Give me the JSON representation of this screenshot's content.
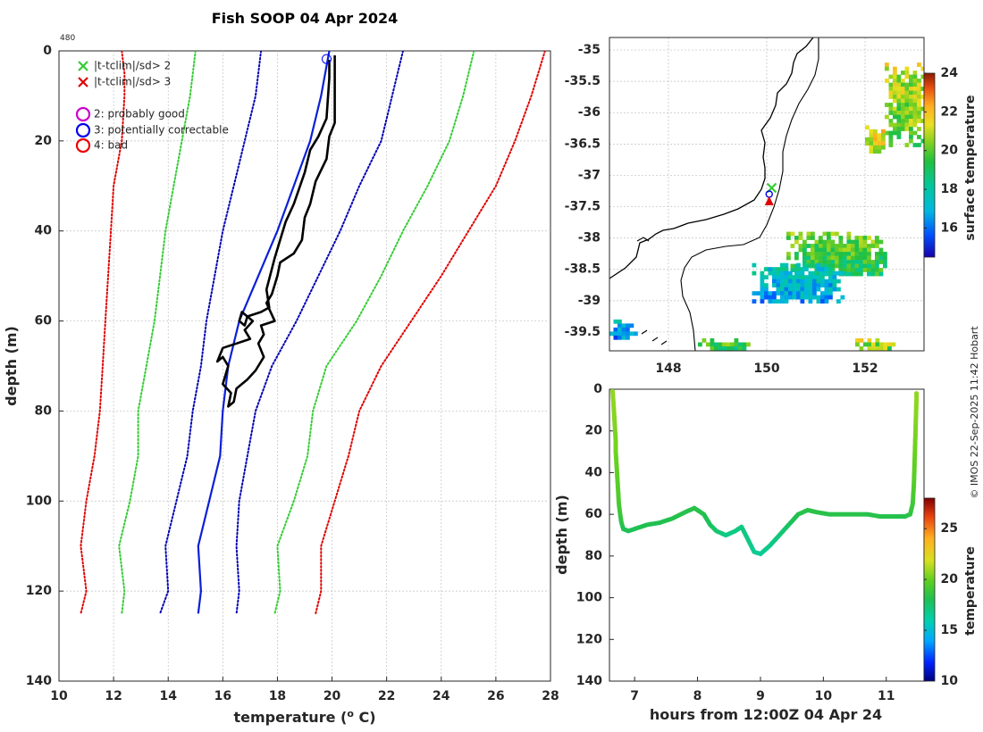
{
  "credit": "© IMOS 22-Sep-2025 11:42 Hobart",
  "colors": {
    "limit2": "#33cc33",
    "limit3": "#e00000",
    "sd1": "#0000b4",
    "climatology": "#0b1fd6",
    "profile": "#000000",
    "axis": "#262626",
    "grid": "#c0c0c0"
  },
  "chart_data": [
    {
      "type": "line",
      "id": "profile",
      "title": "Fish SOOP 04 Apr 2024",
      "annotation": "480",
      "xlabel": "temperature (",
      "xlabel_sup": "o",
      "xlabel_tail": " C)",
      "ylabel": "depth (m)",
      "xlim": [
        10,
        28
      ],
      "ylim": [
        0,
        140
      ],
      "y_reversed": true,
      "xticks": [
        10,
        12,
        14,
        16,
        18,
        20,
        22,
        24,
        26,
        28
      ],
      "yticks": [
        0,
        20,
        40,
        60,
        80,
        100,
        120,
        140
      ],
      "grid": true,
      "legend": {
        "position": "top-left",
        "entries": [
          {
            "marker": "x",
            "color": "#33cc33",
            "label": "|t-tclim|/sd> 2"
          },
          {
            "marker": "x",
            "color": "#e00000",
            "label": "|t-tclim|/sd> 3"
          },
          {
            "marker": "o",
            "color": "#cc00cc",
            "label": "2: probably good"
          },
          {
            "marker": "o",
            "color": "#0000ee",
            "label": "3: potentially correctable"
          },
          {
            "marker": "o",
            "color": "#ee0000",
            "label": "4: bad"
          }
        ]
      },
      "series": [
        {
          "name": "climatology-3sd-low",
          "style": "dotted",
          "color": "#e00000",
          "points": [
            [
              12.3,
              0
            ],
            [
              12.4,
              5
            ],
            [
              12.4,
              10
            ],
            [
              12.3,
              20
            ],
            [
              12.0,
              30
            ],
            [
              11.9,
              40
            ],
            [
              11.8,
              50
            ],
            [
              11.7,
              60
            ],
            [
              11.6,
              70
            ],
            [
              11.5,
              80
            ],
            [
              11.3,
              90
            ],
            [
              11.0,
              100
            ],
            [
              10.8,
              110
            ],
            [
              11.0,
              120
            ],
            [
              10.8,
              125
            ]
          ]
        },
        {
          "name": "climatology-2sd-low",
          "style": "dotted",
          "color": "#33cc33",
          "points": [
            [
              15.0,
              0
            ],
            [
              14.8,
              10
            ],
            [
              14.5,
              20
            ],
            [
              14.2,
              30
            ],
            [
              13.9,
              40
            ],
            [
              13.7,
              50
            ],
            [
              13.5,
              60
            ],
            [
              13.2,
              70
            ],
            [
              12.9,
              80
            ],
            [
              12.9,
              90
            ],
            [
              12.6,
              100
            ],
            [
              12.2,
              110
            ],
            [
              12.4,
              120
            ],
            [
              12.3,
              125
            ]
          ]
        },
        {
          "name": "climatology-1sd-low",
          "style": "dotted",
          "color": "#0000b4",
          "points": [
            [
              17.4,
              0
            ],
            [
              17.2,
              10
            ],
            [
              16.8,
              20
            ],
            [
              16.4,
              30
            ],
            [
              16.0,
              40
            ],
            [
              15.7,
              50
            ],
            [
              15.4,
              60
            ],
            [
              15.2,
              70
            ],
            [
              14.9,
              80
            ],
            [
              14.7,
              90
            ],
            [
              14.3,
              100
            ],
            [
              13.9,
              110
            ],
            [
              14.0,
              120
            ],
            [
              13.7,
              125
            ]
          ]
        },
        {
          "name": "climatology-mean",
          "style": "solid",
          "color": "#0b1fd6",
          "points": [
            [
              19.9,
              0
            ],
            [
              19.6,
              10
            ],
            [
              19.2,
              20
            ],
            [
              18.6,
              30
            ],
            [
              18.0,
              40
            ],
            [
              17.3,
              50
            ],
            [
              16.6,
              60
            ],
            [
              16.2,
              70
            ],
            [
              16.0,
              80
            ],
            [
              15.9,
              90
            ],
            [
              15.5,
              100
            ],
            [
              15.1,
              110
            ],
            [
              15.2,
              120
            ],
            [
              15.1,
              125
            ]
          ]
        },
        {
          "name": "climatology-1sd-high",
          "style": "dotted",
          "color": "#0000b4",
          "points": [
            [
              22.6,
              0
            ],
            [
              22.2,
              10
            ],
            [
              21.8,
              20
            ],
            [
              21.0,
              30
            ],
            [
              20.3,
              40
            ],
            [
              19.5,
              50
            ],
            [
              18.7,
              60
            ],
            [
              17.8,
              70
            ],
            [
              17.2,
              80
            ],
            [
              16.9,
              90
            ],
            [
              16.6,
              100
            ],
            [
              16.5,
              110
            ],
            [
              16.6,
              120
            ],
            [
              16.5,
              125
            ]
          ]
        },
        {
          "name": "climatology-2sd-high",
          "style": "dotted",
          "color": "#33cc33",
          "points": [
            [
              25.2,
              0
            ],
            [
              24.8,
              10
            ],
            [
              24.3,
              20
            ],
            [
              23.5,
              30
            ],
            [
              22.6,
              40
            ],
            [
              21.8,
              50
            ],
            [
              20.9,
              60
            ],
            [
              19.8,
              70
            ],
            [
              19.3,
              80
            ],
            [
              19.1,
              90
            ],
            [
              18.6,
              100
            ],
            [
              18.0,
              110
            ],
            [
              18.1,
              120
            ],
            [
              17.9,
              125
            ]
          ]
        },
        {
          "name": "climatology-3sd-high",
          "style": "dotted",
          "color": "#e00000",
          "points": [
            [
              27.8,
              0
            ],
            [
              27.3,
              10
            ],
            [
              26.7,
              20
            ],
            [
              26.0,
              30
            ],
            [
              25.0,
              40
            ],
            [
              24.0,
              50
            ],
            [
              22.9,
              60
            ],
            [
              21.8,
              70
            ],
            [
              21.0,
              80
            ],
            [
              20.6,
              90
            ],
            [
              20.1,
              100
            ],
            [
              19.6,
              110
            ],
            [
              19.6,
              120
            ],
            [
              19.4,
              125
            ]
          ]
        },
        {
          "name": "observed-profile",
          "style": "solid",
          "color": "#000000",
          "points": [
            [
              20.1,
              1
            ],
            [
              20.1,
              10
            ],
            [
              20.1,
              16
            ],
            [
              19.9,
              19
            ],
            [
              19.8,
              24
            ],
            [
              19.4,
              29
            ],
            [
              19.2,
              34
            ],
            [
              19.0,
              37
            ],
            [
              18.9,
              42
            ],
            [
              18.6,
              45
            ],
            [
              18.1,
              47
            ],
            [
              18.0,
              50
            ],
            [
              17.8,
              54
            ],
            [
              17.6,
              56
            ],
            [
              17.9,
              60
            ],
            [
              17.4,
              61
            ],
            [
              17.5,
              63
            ],
            [
              17.3,
              65
            ],
            [
              17.5,
              68
            ],
            [
              17.2,
              71
            ],
            [
              16.9,
              73
            ],
            [
              16.5,
              75
            ],
            [
              16.4,
              78
            ],
            [
              16.2,
              79
            ],
            [
              16.3,
              76
            ],
            [
              16.0,
              74
            ],
            [
              16.2,
              70
            ],
            [
              16.0,
              68
            ],
            [
              15.8,
              69
            ],
            [
              16.0,
              66
            ],
            [
              16.5,
              65
            ],
            [
              17.0,
              64
            ],
            [
              16.8,
              62
            ],
            [
              17.1,
              60
            ],
            [
              16.7,
              58
            ],
            [
              16.6,
              60
            ],
            [
              16.8,
              61
            ],
            [
              16.9,
              59
            ],
            [
              17.4,
              58
            ],
            [
              17.7,
              57
            ],
            [
              17.6,
              53
            ],
            [
              17.9,
              46
            ],
            [
              18.3,
              38
            ],
            [
              18.6,
              34
            ],
            [
              19.0,
              27
            ],
            [
              19.2,
              22
            ],
            [
              19.5,
              19
            ],
            [
              19.8,
              15
            ],
            [
              19.9,
              6
            ],
            [
              19.9,
              2
            ]
          ]
        }
      ],
      "markers": [
        {
          "shape": "circle",
          "color": "#0000ee",
          "x": 19.8,
          "y": 1.8
        }
      ]
    },
    {
      "type": "heatmap",
      "id": "map",
      "xticks": [
        148,
        150,
        152
      ],
      "yticks": [
        -35,
        -35.5,
        -36,
        -36.5,
        -37,
        -37.5,
        -38,
        -38.5,
        -39,
        -39.5
      ],
      "xlim": [
        146.8,
        153.2
      ],
      "ylim": [
        -39.8,
        -34.8
      ],
      "grid": true,
      "colorbar": {
        "label": "surface temperature",
        "min": 14.5,
        "max": 24,
        "ticks": [
          16,
          18,
          20,
          22,
          24
        ]
      },
      "sst_patches": [
        {
          "lon": [
            152.4,
            153.2
          ],
          "lat": [
            -36.5,
            -35.2
          ],
          "t": 20.5
        },
        {
          "lon": [
            150.4,
            152.4
          ],
          "lat": [
            -38.6,
            -37.9
          ],
          "t": 19.6
        },
        {
          "lon": [
            149.7,
            151.5
          ],
          "lat": [
            -39.0,
            -38.4
          ],
          "t": 17.2
        },
        {
          "lon": [
            146.8,
            147.3
          ],
          "lat": [
            -39.6,
            -39.3
          ],
          "t": 16.8
        },
        {
          "lon": [
            148.6,
            149.6
          ],
          "lat": [
            -39.8,
            -39.6
          ],
          "t": 19.4
        },
        {
          "lon": [
            151.8,
            152.6
          ],
          "lat": [
            -39.8,
            -39.6
          ],
          "t": 20.4
        },
        {
          "lon": [
            152.0,
            152.4
          ],
          "lat": [
            -36.6,
            -36.2
          ],
          "t": 21.4
        }
      ],
      "track_markers": [
        {
          "shape": "x",
          "color": "#33cc33",
          "lon": 150.1,
          "lat": -37.2
        },
        {
          "shape": "circle",
          "color": "#0000ee",
          "lon": 150.05,
          "lat": -37.3
        },
        {
          "shape": "triangle",
          "color": "#e00000",
          "lon": 150.05,
          "lat": -37.42
        }
      ]
    },
    {
      "type": "scatter",
      "id": "section",
      "xlabel": "hours from 12:00Z 04 Apr 24",
      "ylabel": "depth (m)",
      "xlim": [
        6.6,
        11.6
      ],
      "ylim": [
        0,
        140
      ],
      "y_reversed": true,
      "xticks": [
        7,
        8,
        9,
        10,
        11
      ],
      "yticks": [
        0,
        20,
        40,
        60,
        80,
        100,
        120,
        140
      ],
      "colorbar": {
        "label": "temperature",
        "min": 10,
        "max": 28,
        "ticks": [
          10,
          15,
          20,
          25
        ]
      },
      "track": [
        [
          6.65,
          1,
          20.8
        ],
        [
          6.66,
          5,
          20.8
        ],
        [
          6.67,
          10,
          20.7
        ],
        [
          6.68,
          15,
          20.6
        ],
        [
          6.69,
          20,
          20.5
        ],
        [
          6.7,
          25,
          20.4
        ],
        [
          6.7,
          30,
          20.3
        ],
        [
          6.71,
          35,
          20.1
        ],
        [
          6.72,
          40,
          20.0
        ],
        [
          6.73,
          45,
          19.8
        ],
        [
          6.74,
          50,
          19.6
        ],
        [
          6.75,
          55,
          19.3
        ],
        [
          6.77,
          60,
          18.9
        ],
        [
          6.79,
          64,
          18.4
        ],
        [
          6.82,
          67,
          18.0
        ],
        [
          6.9,
          68,
          17.8
        ],
        [
          7.0,
          67,
          17.9
        ],
        [
          7.2,
          65,
          18.0
        ],
        [
          7.4,
          64,
          18.0
        ],
        [
          7.6,
          62,
          18.1
        ],
        [
          7.8,
          59,
          18.2
        ],
        [
          7.95,
          57,
          18.3
        ],
        [
          8.1,
          60,
          18.1
        ],
        [
          8.2,
          65,
          17.7
        ],
        [
          8.3,
          68,
          17.4
        ],
        [
          8.45,
          70,
          16.9
        ],
        [
          8.6,
          68,
          16.9
        ],
        [
          8.7,
          66,
          17.0
        ],
        [
          8.8,
          72,
          16.9
        ],
        [
          8.9,
          78,
          16.6
        ],
        [
          9.0,
          79,
          16.6
        ],
        [
          9.15,
          75,
          16.8
        ],
        [
          9.3,
          70,
          17.1
        ],
        [
          9.45,
          65,
          17.6
        ],
        [
          9.6,
          60,
          18.1
        ],
        [
          9.75,
          58,
          18.3
        ],
        [
          9.9,
          59,
          18.3
        ],
        [
          10.1,
          60,
          18.2
        ],
        [
          10.3,
          60,
          18.2
        ],
        [
          10.5,
          60,
          18.3
        ],
        [
          10.7,
          60,
          18.2
        ],
        [
          10.9,
          61,
          18.2
        ],
        [
          11.1,
          61,
          18.2
        ],
        [
          11.3,
          61,
          18.1
        ],
        [
          11.38,
          60,
          18.4
        ],
        [
          11.42,
          55,
          19.0
        ],
        [
          11.44,
          45,
          19.6
        ],
        [
          11.45,
          35,
          20.0
        ],
        [
          11.46,
          25,
          20.3
        ],
        [
          11.47,
          15,
          20.6
        ],
        [
          11.48,
          5,
          20.8
        ],
        [
          11.48,
          1,
          20.8
        ]
      ]
    }
  ]
}
